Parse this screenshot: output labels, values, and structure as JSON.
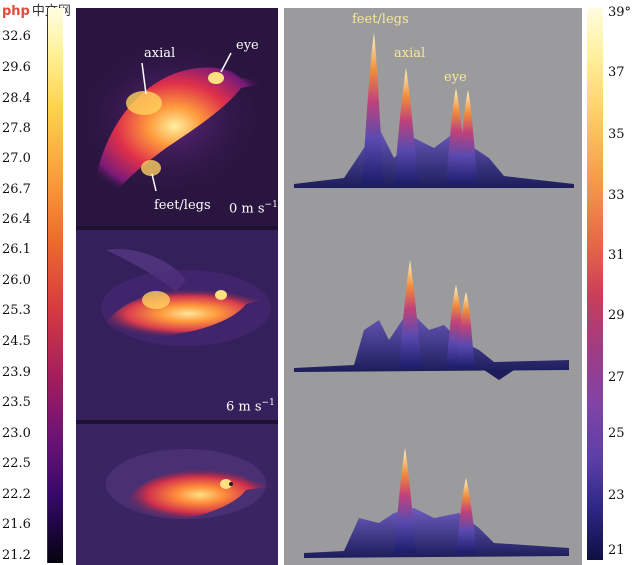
{
  "watermark": {
    "brand": "php",
    "site": "中文网"
  },
  "left_scale": {
    "ticks": [
      "32.6",
      "29.6",
      "28.4",
      "27.8",
      "27.0",
      "26.7",
      "26.4",
      "26.1",
      "26.0",
      "25.3",
      "24.5",
      "23.9",
      "23.5",
      "23.0",
      "22.5",
      "22.2",
      "21.6",
      "21.2"
    ]
  },
  "right_scale": {
    "ticks": [
      "39°",
      "37",
      "35",
      "33",
      "31",
      "29",
      "27",
      "25",
      "23",
      "21"
    ]
  },
  "thermal_panels": {
    "top": {
      "axial": "axial",
      "eye": "eye",
      "feet": "feet/legs",
      "speed": "0 m s",
      "speed_exp": "−1"
    },
    "middle": {
      "speed": "6 m s",
      "speed_exp": "−1"
    }
  },
  "surface_labels": {
    "feet": "feet/legs",
    "axial": "axial",
    "eye": "eye"
  },
  "colors": {
    "thermal_bg": "#1d1232",
    "surface_bg": "#9b9b9d"
  }
}
